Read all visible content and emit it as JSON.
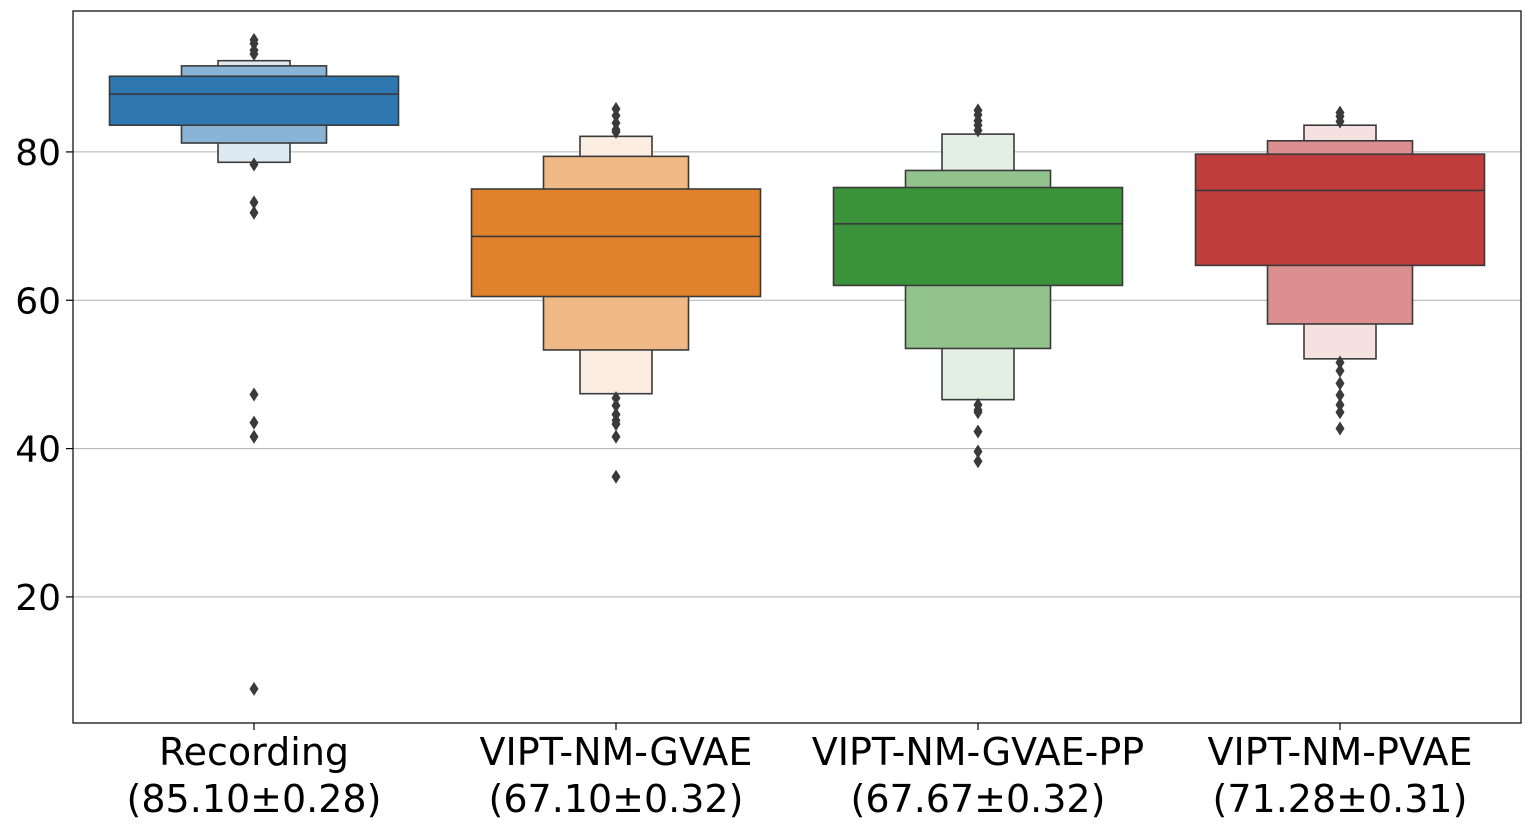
{
  "chart_data": {
    "type": "boxen",
    "title": "",
    "xlabel": "",
    "ylabel": "",
    "ylim": [
      3,
      99
    ],
    "yticks": [
      20,
      40,
      60,
      80
    ],
    "grid": "y",
    "categories": [
      {
        "name": "Recording",
        "summary": "(85.10±0.28)",
        "color": "#2f77b0",
        "median": 87.8,
        "levels": [
          {
            "lo": 83.6,
            "hi": 90.2,
            "fill": "#2f77b0"
          },
          {
            "lo": 81.2,
            "hi": 91.6,
            "fill": "#8ab4d6"
          },
          {
            "lo": 78.6,
            "hi": 92.3,
            "fill": "#deeaf3"
          }
        ],
        "outliers": [
          95.1,
          94.6,
          93.7,
          93.2,
          78.3,
          73.2,
          71.8,
          47.3,
          43.5,
          41.6,
          7.6
        ]
      },
      {
        "name": "VIPT-NM-GVAE",
        "summary": "(67.10±0.32)",
        "color": "#e0812b",
        "median": 68.6,
        "levels": [
          {
            "lo": 60.5,
            "hi": 75.0,
            "fill": "#e0812b"
          },
          {
            "lo": 53.3,
            "hi": 79.4,
            "fill": "#efb986"
          },
          {
            "lo": 47.4,
            "hi": 82.1,
            "fill": "#fbede1"
          }
        ],
        "outliers": [
          85.8,
          84.9,
          83.9,
          83.0,
          82.7,
          46.8,
          45.8,
          44.6,
          43.8,
          43.3,
          41.6,
          36.2
        ]
      },
      {
        "name": "VIPT-NM-GVAE-PP",
        "summary": "(67.67±0.32)",
        "color": "#3a923a",
        "median": 70.3,
        "levels": [
          {
            "lo": 62.0,
            "hi": 75.2,
            "fill": "#3a923a"
          },
          {
            "lo": 53.5,
            "hi": 77.5,
            "fill": "#93c38d"
          },
          {
            "lo": 46.6,
            "hi": 82.4,
            "fill": "#e2efe2"
          }
        ],
        "outliers": [
          85.6,
          85.0,
          84.2,
          83.6,
          82.9,
          45.9,
          45.2,
          44.9,
          42.3,
          39.6,
          38.3
        ]
      },
      {
        "name": "VIPT-NM-PVAE",
        "summary": "(71.28±0.31)",
        "color": "#c03d3e",
        "median": 74.8,
        "levels": [
          {
            "lo": 64.7,
            "hi": 79.7,
            "fill": "#c03d3e"
          },
          {
            "lo": 56.8,
            "hi": 81.5,
            "fill": "#dc8f8f"
          },
          {
            "lo": 52.1,
            "hi": 83.6,
            "fill": "#f6e1e1"
          }
        ],
        "outliers": [
          85.3,
          84.8,
          84.1,
          51.6,
          50.5,
          48.8,
          47.2,
          45.9,
          44.9,
          42.7
        ]
      }
    ]
  }
}
